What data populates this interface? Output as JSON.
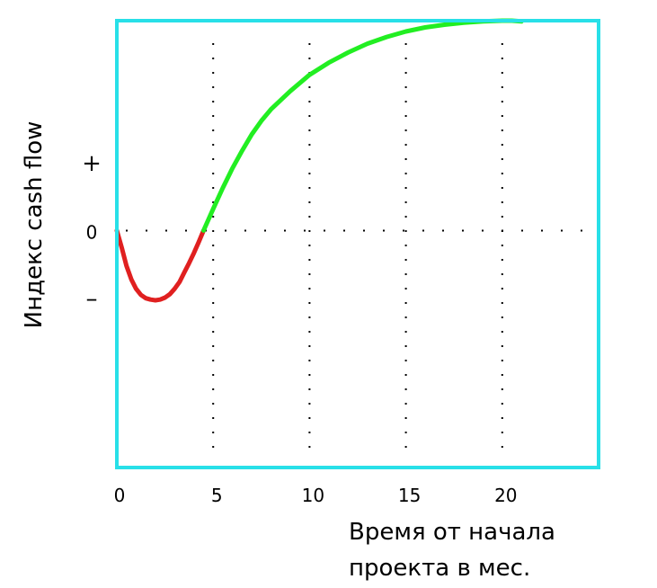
{
  "chart_data": {
    "type": "line",
    "title": "",
    "xlabel_lines": [
      "Время от начала",
      "проекта в мес."
    ],
    "ylabel": "Индекс cash flow",
    "x_ticks": [
      {
        "value": 0,
        "label": "0"
      },
      {
        "value": 5,
        "label": "5"
      },
      {
        "value": 10,
        "label": "10"
      },
      {
        "value": 15,
        "label": "15"
      },
      {
        "value": 20,
        "label": "20"
      }
    ],
    "y_ticks": [
      {
        "value": 1,
        "label": "+"
      },
      {
        "value": 0,
        "label": "0"
      },
      {
        "value": -1,
        "label": "–"
      }
    ],
    "xlim": [
      0,
      25
    ],
    "ylim": [
      -3.5,
      3.1
    ],
    "grid": true,
    "series": [
      {
        "color": "#e02020",
        "x": [
          0,
          0.25,
          0.5,
          0.75,
          1.0,
          1.25,
          1.5,
          1.75,
          2.0,
          2.25,
          2.5,
          2.75,
          3.0,
          3.25,
          3.5,
          3.75,
          4.0,
          4.25,
          4.5
        ],
        "y": [
          0,
          -0.25,
          -0.52,
          -0.72,
          -0.86,
          -0.95,
          -1.0,
          -1.02,
          -1.03,
          -1.02,
          -0.99,
          -0.94,
          -0.86,
          -0.76,
          -0.62,
          -0.48,
          -0.33,
          -0.17,
          0
        ]
      },
      {
        "color": "#22ee22",
        "x": [
          4.5,
          5,
          5.5,
          6,
          6.5,
          7,
          7.5,
          8,
          9,
          10,
          11,
          12,
          13,
          14,
          15,
          16,
          17,
          18,
          19,
          20,
          20.5,
          21
        ],
        "y": [
          0,
          0.32,
          0.63,
          0.92,
          1.18,
          1.42,
          1.62,
          1.79,
          2.06,
          2.3,
          2.48,
          2.63,
          2.76,
          2.86,
          2.94,
          3.0,
          3.04,
          3.07,
          3.09,
          3.1,
          3.1,
          3.09
        ]
      }
    ],
    "colors": {
      "frame": "#28e0e8",
      "grid": "#000000",
      "text": "#000000"
    }
  }
}
